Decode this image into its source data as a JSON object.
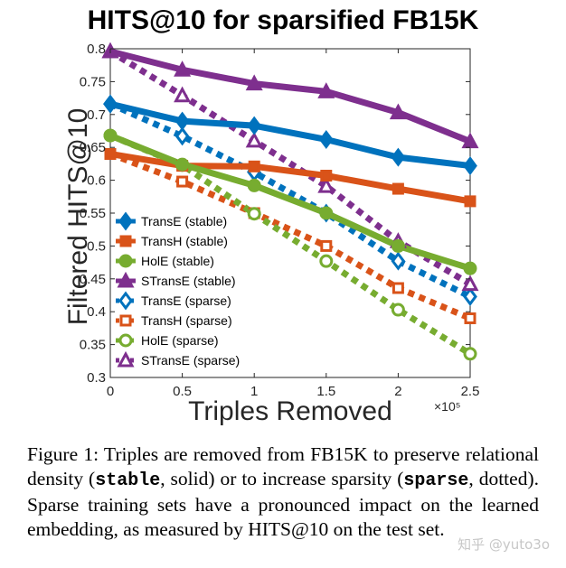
{
  "chart_data": {
    "type": "line",
    "title": "HITS@10 for sparsified FB15K",
    "xlabel": "Triples Removed",
    "ylabel": "Filtered HITS@10",
    "x_multiplier": "×10⁵",
    "x": [
      0,
      0.5,
      1,
      1.5,
      2,
      2.5
    ],
    "x_ticks": [
      "0",
      "0.5",
      "1",
      "1.5",
      "2",
      "2.5"
    ],
    "y_ticks": [
      "0.3",
      "0.35",
      "0.4",
      "0.45",
      "0.5",
      "0.55",
      "0.6",
      "0.65",
      "0.7",
      "0.75",
      "0.8"
    ],
    "xlim": [
      0,
      2.5
    ],
    "ylim": [
      0.3,
      0.8
    ],
    "grid": false,
    "legend_position": "bottom-left",
    "series": [
      {
        "name": "TransE (stable)",
        "color": "#0072bd",
        "style": "solid",
        "marker": "diamond",
        "values": [
          0.716,
          0.69,
          0.683,
          0.662,
          0.635,
          0.622
        ]
      },
      {
        "name": "TransH (stable)",
        "color": "#d95319",
        "style": "solid",
        "marker": "square",
        "values": [
          0.64,
          0.622,
          0.621,
          0.607,
          0.587,
          0.568
        ]
      },
      {
        "name": "HolE (stable)",
        "color": "#77ac30",
        "style": "solid",
        "marker": "circle",
        "values": [
          0.668,
          0.624,
          0.592,
          0.55,
          0.5,
          0.466
        ]
      },
      {
        "name": "STransE (stable)",
        "color": "#7e2f8e",
        "style": "solid",
        "marker": "triangle",
        "values": [
          0.796,
          0.768,
          0.747,
          0.735,
          0.703,
          0.659
        ]
      },
      {
        "name": "TransE (sparse)",
        "color": "#0072bd",
        "style": "dotted",
        "marker": "diamond",
        "values": [
          0.716,
          0.667,
          0.612,
          0.55,
          0.477,
          0.423
        ]
      },
      {
        "name": "TransH (sparse)",
        "color": "#d95319",
        "style": "dotted",
        "marker": "square",
        "values": [
          0.64,
          0.598,
          0.55,
          0.5,
          0.436,
          0.39
        ]
      },
      {
        "name": "HolE (sparse)",
        "color": "#77ac30",
        "style": "dotted",
        "marker": "circle",
        "values": [
          0.668,
          0.623,
          0.549,
          0.477,
          0.403,
          0.336
        ]
      },
      {
        "name": "STransE (sparse)",
        "color": "#7e2f8e",
        "style": "dotted",
        "marker": "triangle",
        "values": [
          0.796,
          0.729,
          0.66,
          0.591,
          0.507,
          0.442
        ]
      }
    ]
  },
  "caption": {
    "label": "Figure 1:",
    "text1": " Triples are removed from FB15K to preserve relational density (",
    "code1": "stable",
    "text2": ", solid) or to increase sparsity (",
    "code2": "sparse",
    "text3": ", dotted). Sparse training sets have a pronounced impact on the learned embedding, as measured by HITS@10 on the test set."
  },
  "watermark": "知乎 @yuto3o"
}
